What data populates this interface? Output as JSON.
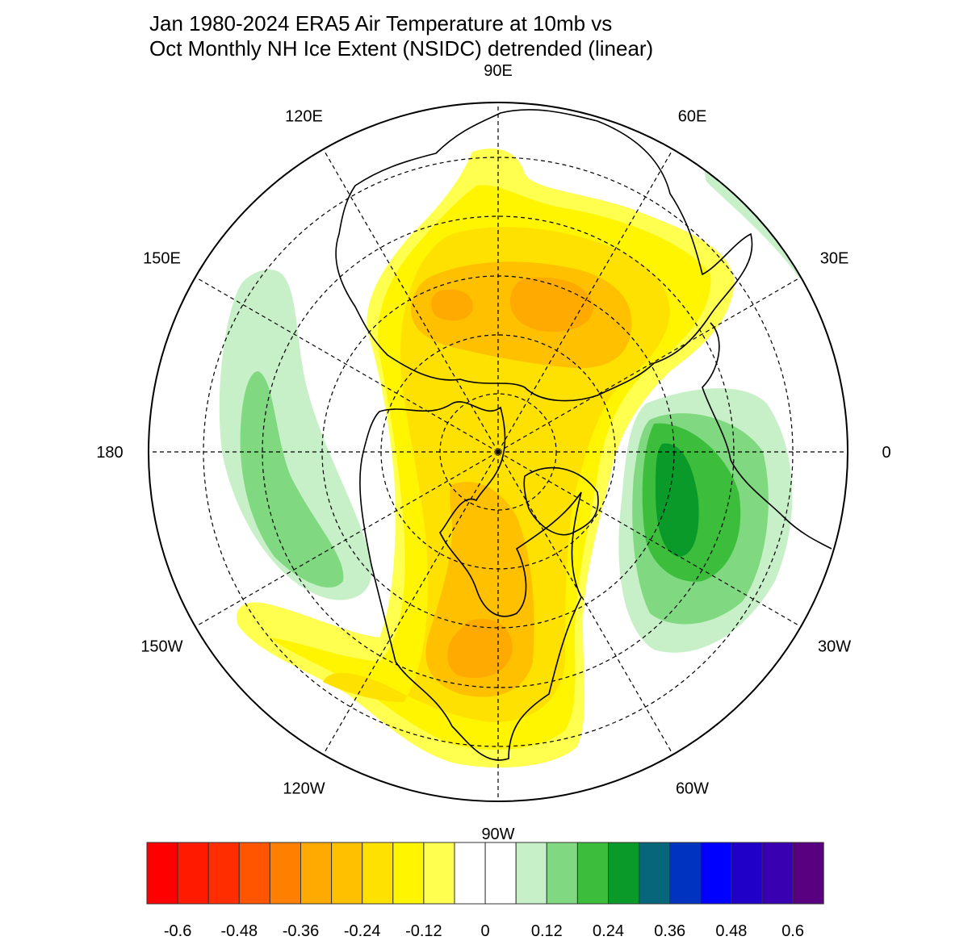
{
  "title": {
    "line1": "Jan 1980-2024 ERA5 Air Temperature at 10mb vs",
    "line2": "Oct Monthly NH Ice Extent (NSIDC) detrended (linear)"
  },
  "map": {
    "projection": "north polar stereographic",
    "longitude_labels": [
      {
        "lon": 90,
        "text": "90E"
      },
      {
        "lon": 60,
        "text": "60E"
      },
      {
        "lon": 30,
        "text": "30E"
      },
      {
        "lon": 0,
        "text": "0"
      },
      {
        "lon": -30,
        "text": "30W"
      },
      {
        "lon": -60,
        "text": "60W"
      },
      {
        "lon": -90,
        "text": "90W"
      },
      {
        "lon": -120,
        "text": "120W"
      },
      {
        "lon": -150,
        "text": "150W"
      },
      {
        "lon": 180,
        "text": "180"
      },
      {
        "lon": 150,
        "text": "150E"
      },
      {
        "lon": 120,
        "text": "120E"
      }
    ]
  },
  "colorbar": {
    "colors": [
      "#ff0000",
      "#ff1a00",
      "#ff2d00",
      "#ff5500",
      "#ff8000",
      "#ffaa00",
      "#ffc000",
      "#ffe100",
      "#fff500",
      "#ffff50",
      "#ffffff",
      "#ffffff",
      "#c8f0c8",
      "#80d880",
      "#3cbe3c",
      "#0a9a2a",
      "#08667a",
      "#0033c0",
      "#0000ff",
      "#2000c8",
      "#3800b0",
      "#580080"
    ],
    "labels": [
      "-0.6",
      "-0.48",
      "-0.36",
      "-0.24",
      "-0.12",
      "0",
      "0.12",
      "0.24",
      "0.36",
      "0.48",
      "0.6"
    ]
  }
}
